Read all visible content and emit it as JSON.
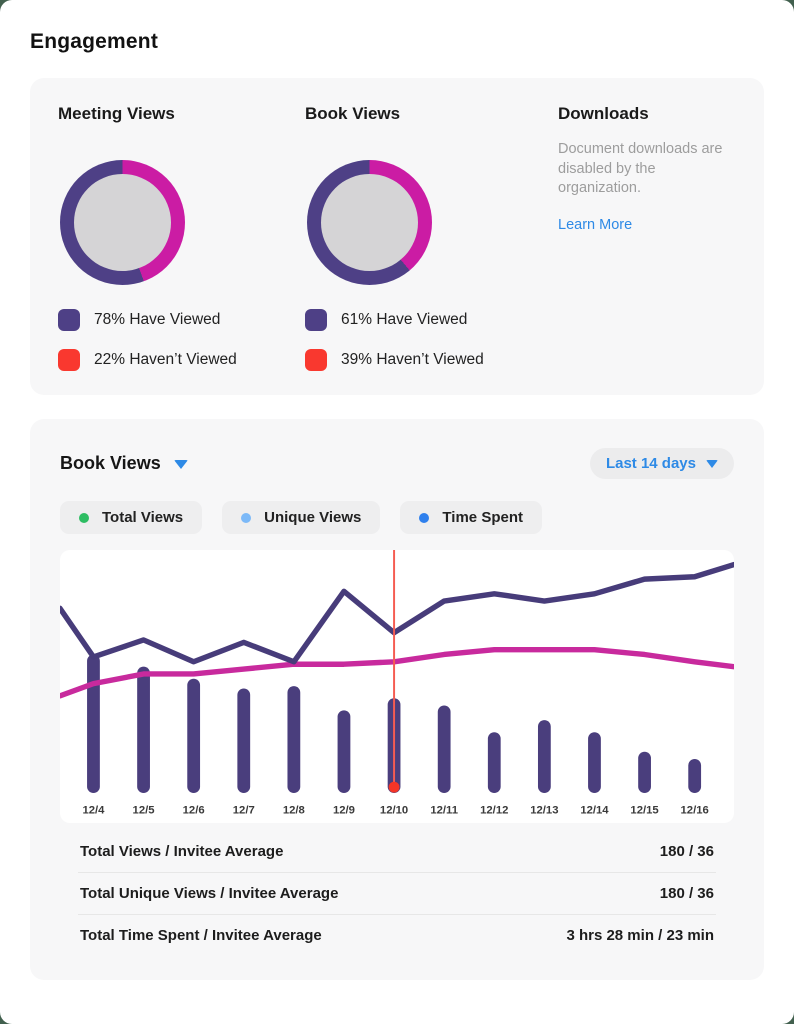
{
  "page": {
    "title": "Engagement"
  },
  "theme": {
    "outer_background": "#42604e",
    "card_background": "#f7f7f8",
    "purple": "#4a3e7d",
    "magenta": "#c82a9d",
    "red": "#f9382f",
    "link_blue": "#2e8ae6"
  },
  "overview": {
    "meeting": {
      "title": "Meeting Views",
      "ring": {
        "sweep_deg": 160,
        "start_color": "#cb1ca4",
        "rest_color": "#4e4086",
        "hole_color": "#d5d4d6"
      },
      "legend": [
        {
          "label": "78% Have Viewed",
          "color": "#4e4086"
        },
        {
          "label": "22% Haven’t Viewed",
          "color": "#f9382f"
        }
      ]
    },
    "book": {
      "title": "Book Views",
      "ring": {
        "sweep_deg": 140,
        "start_color": "#cb1ca4",
        "rest_color": "#4e4086",
        "hole_color": "#d5d4d6"
      },
      "legend": [
        {
          "label": "61% Have Viewed",
          "color": "#4e4086"
        },
        {
          "label": "39% Haven’t Viewed",
          "color": "#f9382f"
        }
      ]
    },
    "downloads": {
      "title": "Downloads",
      "message": "Document downloads are disabled by the organization.",
      "link_label": "Learn More"
    }
  },
  "detail": {
    "selector_label": "Book Views",
    "range_label": "Last 14 days",
    "legend_chips": [
      {
        "label": "Total Views",
        "color": "#2ebd63"
      },
      {
        "label": "Unique Views",
        "color": "#7cb9f8"
      },
      {
        "label": "Time Spent",
        "color": "#2f80ed"
      }
    ],
    "summary_rows": [
      {
        "label": "Total Views / Invitee Average",
        "value": "180 / 36"
      },
      {
        "label": "Total Unique Views / Invitee Average",
        "value": "180 / 36"
      },
      {
        "label": "Total Time Spent / Invitee Average",
        "value": "3 hrs 28 min / 23 min"
      }
    ]
  },
  "chart_data": {
    "type": "combo (bar + line)",
    "note": "no y-axis shown in UI; values are percent of plot height",
    "categories": [
      "12/4",
      "12/5",
      "12/6",
      "12/7",
      "12/8",
      "12/9",
      "12/10",
      "12/11",
      "12/12",
      "12/13",
      "12/14",
      "12/15",
      "12/16"
    ],
    "series": [
      {
        "name": "daily-views-bars",
        "type": "bar",
        "color": "#4a3e7d",
        "values_pct": [
          57,
          52,
          47,
          43,
          44,
          34,
          39,
          36,
          25,
          30,
          25,
          17,
          14
        ]
      },
      {
        "name": "total-views-line",
        "type": "line",
        "color": "#473c7a",
        "edge_start_pct": 76,
        "values_pct": [
          56,
          63,
          54,
          62,
          54,
          83,
          66,
          79,
          82,
          79,
          82,
          88,
          89
        ],
        "edge_end_pct": 94
      },
      {
        "name": "invitee-average-line",
        "type": "line",
        "color": "#c82a9d",
        "edge_start_pct": 40,
        "values_pct": [
          45,
          49,
          49,
          51,
          53,
          53,
          54,
          57,
          59,
          59,
          59,
          57,
          54
        ],
        "edge_end_pct": 52
      }
    ],
    "highlight": {
      "category": "12/10",
      "line_color": "#f55c52",
      "dot_color": "#f43527"
    },
    "legend_position": "above chart (chips)",
    "grid": false
  }
}
